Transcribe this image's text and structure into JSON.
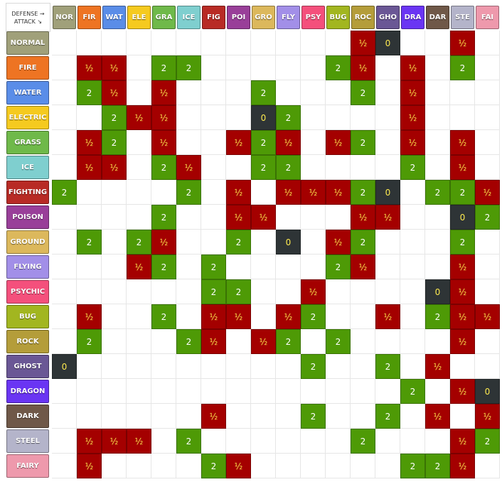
{
  "corner": {
    "line1": "DEFENSE →",
    "line2": "ATTACK ↘"
  },
  "types": [
    {
      "key": "normal",
      "short": "NOR",
      "name": "NORMAL",
      "color": "#a0a07a"
    },
    {
      "key": "fire",
      "short": "FIR",
      "name": "FIRE",
      "color": "#ee7423"
    },
    {
      "key": "water",
      "short": "WAT",
      "name": "WATER",
      "color": "#5a8de8"
    },
    {
      "key": "electric",
      "short": "ELE",
      "name": "ELECTRIC",
      "color": "#f5ca1f"
    },
    {
      "key": "grass",
      "short": "GRA",
      "name": "GRASS",
      "color": "#6fb94a"
    },
    {
      "key": "ice",
      "short": "ICE",
      "name": "ICE",
      "color": "#7fcfcf"
    },
    {
      "key": "fighting",
      "short": "FIG",
      "name": "FIGHTING",
      "color": "#b82b25"
    },
    {
      "key": "poison",
      "short": "POI",
      "name": "POISON",
      "color": "#993f99"
    },
    {
      "key": "ground",
      "short": "GRO",
      "name": "GROUND",
      "color": "#dcb85c"
    },
    {
      "key": "flying",
      "short": "FLY",
      "name": "FLYING",
      "color": "#a28fe8"
    },
    {
      "key": "psychic",
      "short": "PSY",
      "name": "PSYCHIC",
      "color": "#f4507c"
    },
    {
      "key": "bug",
      "short": "BUG",
      "name": "BUG",
      "color": "#a2b620"
    },
    {
      "key": "rock",
      "short": "ROC",
      "name": "ROCK",
      "color": "#b49d3a"
    },
    {
      "key": "ghost",
      "short": "GHO",
      "name": "GHOST",
      "color": "#6a5795"
    },
    {
      "key": "dragon",
      "short": "DRA",
      "name": "DRAGON",
      "color": "#6a35f3"
    },
    {
      "key": "dark",
      "short": "DAR",
      "name": "DARK",
      "color": "#6f5848"
    },
    {
      "key": "steel",
      "short": "STE",
      "name": "STEEL",
      "color": "#b4b4ca"
    },
    {
      "key": "fairy",
      "short": "FAI",
      "name": "FAIRY",
      "color": "#ee99ac"
    }
  ],
  "effectiveness": [
    [
      "",
      "",
      "",
      "",
      "",
      "",
      "",
      "",
      "",
      "",
      "",
      "",
      "½",
      "0",
      "",
      "",
      "½",
      ""
    ],
    [
      "",
      "½",
      "½",
      "",
      "2",
      "2",
      "",
      "",
      "",
      "",
      "",
      "2",
      "½",
      "",
      "½",
      "",
      "2",
      ""
    ],
    [
      "",
      "2",
      "½",
      "",
      "½",
      "",
      "",
      "",
      "2",
      "",
      "",
      "",
      "2",
      "",
      "½",
      "",
      "",
      ""
    ],
    [
      "",
      "",
      "2",
      "½",
      "½",
      "",
      "",
      "",
      "0",
      "2",
      "",
      "",
      "",
      "",
      "½",
      "",
      "",
      ""
    ],
    [
      "",
      "½",
      "2",
      "",
      "½",
      "",
      "",
      "½",
      "2",
      "½",
      "",
      "½",
      "2",
      "",
      "½",
      "",
      "½",
      ""
    ],
    [
      "",
      "½",
      "½",
      "",
      "2",
      "½",
      "",
      "",
      "2",
      "2",
      "",
      "",
      "",
      "",
      "2",
      "",
      "½",
      ""
    ],
    [
      "2",
      "",
      "",
      "",
      "",
      "2",
      "",
      "½",
      "",
      "½",
      "½",
      "½",
      "2",
      "0",
      "",
      "2",
      "2",
      "½"
    ],
    [
      "",
      "",
      "",
      "",
      "2",
      "",
      "",
      "½",
      "½",
      "",
      "",
      "",
      "½",
      "½",
      "",
      "",
      "0",
      "2"
    ],
    [
      "",
      "2",
      "",
      "2",
      "½",
      "",
      "",
      "2",
      "",
      "0",
      "",
      "½",
      "2",
      "",
      "",
      "",
      "2",
      ""
    ],
    [
      "",
      "",
      "",
      "½",
      "2",
      "",
      "2",
      "",
      "",
      "",
      "",
      "2",
      "½",
      "",
      "",
      "",
      "½",
      ""
    ],
    [
      "",
      "",
      "",
      "",
      "",
      "",
      "2",
      "2",
      "",
      "",
      "½",
      "",
      "",
      "",
      "",
      "0",
      "½",
      ""
    ],
    [
      "",
      "½",
      "",
      "",
      "2",
      "",
      "½",
      "½",
      "",
      "½",
      "2",
      "",
      "",
      "½",
      "",
      "2",
      "½",
      "½"
    ],
    [
      "",
      "2",
      "",
      "",
      "",
      "2",
      "½",
      "",
      "½",
      "2",
      "",
      "2",
      "",
      "",
      "",
      "",
      "½",
      ""
    ],
    [
      "0",
      "",
      "",
      "",
      "",
      "",
      "",
      "",
      "",
      "",
      "2",
      "",
      "",
      "2",
      "",
      "½",
      "",
      ""
    ],
    [
      "",
      "",
      "",
      "",
      "",
      "",
      "",
      "",
      "",
      "",
      "",
      "",
      "",
      "",
      "2",
      "",
      "½",
      "0"
    ],
    [
      "",
      "",
      "",
      "",
      "",
      "",
      "½",
      "",
      "",
      "",
      "2",
      "",
      "",
      "2",
      "",
      "½",
      "",
      "½"
    ],
    [
      "",
      "½",
      "½",
      "½",
      "",
      "2",
      "",
      "",
      "",
      "",
      "",
      "",
      "2",
      "",
      "",
      "",
      "½",
      "2"
    ],
    [
      "",
      "½",
      "",
      "",
      "",
      "",
      "2",
      "½",
      "",
      "",
      "",
      "",
      "",
      "",
      "2",
      "2",
      "½",
      ""
    ]
  ],
  "value_colors": {
    "2": "#4e9a06",
    "½": "#a40000",
    "0": "#2e3436"
  },
  "text_colors": {
    "2": "#ffffff",
    "½": "#fce94f",
    "0": "#fce94f"
  }
}
